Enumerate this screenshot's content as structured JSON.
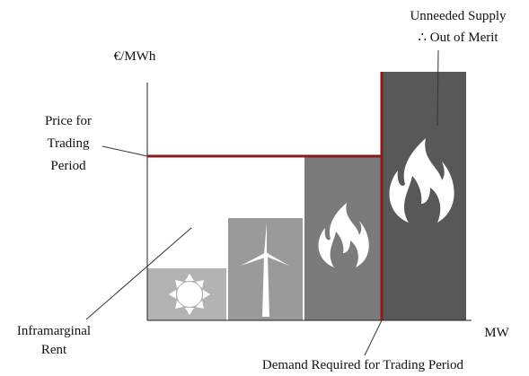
{
  "axis": {
    "y_label": "€/MWh",
    "x_label": "MW"
  },
  "annotations": {
    "price": [
      "Price for",
      "Trading",
      "Period"
    ],
    "supply": [
      "Unneeded Supply",
      "∴ Out of Merit"
    ],
    "rent": [
      "Inframarginal",
      "Rent"
    ],
    "demand": "Demand Required for Trading Period"
  }
}
